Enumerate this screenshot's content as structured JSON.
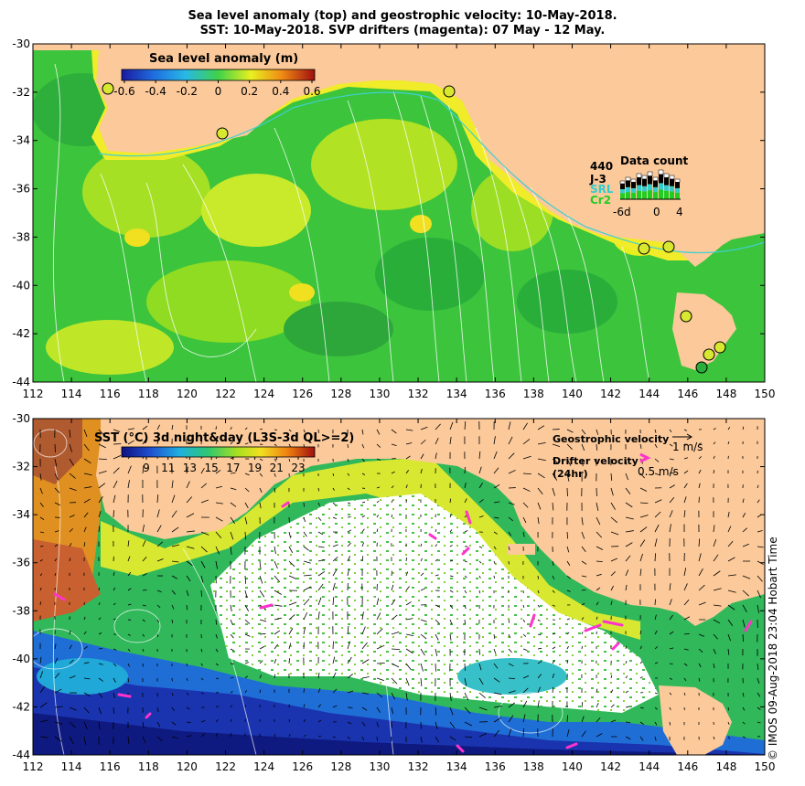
{
  "title_line1": "Sea level anomaly (top) and geostrophic velocity: 10-May-2018.",
  "title_line2": "SST: 10-May-2018. SVP drifters (magenta): 07 May - 12 May.",
  "x_ticks": [
    "112",
    "114",
    "116",
    "118",
    "120",
    "122",
    "124",
    "126",
    "128",
    "130",
    "132",
    "134",
    "136",
    "138",
    "140",
    "142",
    "144",
    "146",
    "148",
    "150"
  ],
  "y_ticks": [
    "-30",
    "-32",
    "-34",
    "-36",
    "-38",
    "-40",
    "-42",
    "-44"
  ],
  "top": {
    "colorbar_title": "Sea level anomaly (m)",
    "colorbar_ticks": [
      "-0.6",
      "-0.4",
      "-0.2",
      "0",
      "0.2",
      "0.4",
      "0.6"
    ],
    "data_count": {
      "title": "Data count",
      "number": "440",
      "missions": [
        "J-3",
        "SRL",
        "Cr2"
      ],
      "axis_ticks": [
        "-6d",
        "0",
        "4"
      ],
      "colors": {
        "j3": "#000000",
        "srl": "#33cccc",
        "cr2": "#22cc22"
      }
    }
  },
  "bottom": {
    "colorbar_title": "SST (°C) 3d night&day (L3S-3d QL>=2)",
    "colorbar_ticks": [
      "9",
      "11",
      "13",
      "15",
      "17",
      "19",
      "21",
      "23"
    ],
    "geo_label": "Geostrophic velocity",
    "geo_scale": "1 m/s",
    "drifter_label": "Drifter velocity",
    "drifter_sub": "(24hr)",
    "drifter_scale": "0.5 m/s"
  },
  "credit": "©  IMOS 09-Aug-2018 23:04 Hobart Time",
  "colors": {
    "land": "#fbc99a",
    "drifter": "#ff33cc",
    "coast": "#40d0d0"
  }
}
